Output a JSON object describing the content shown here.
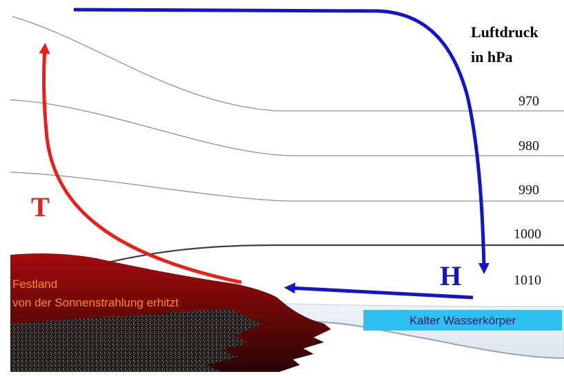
{
  "legend": {
    "title_line1": "Luftdruck",
    "title_line2": "in hPa"
  },
  "pressure_levels": [
    "970",
    "980",
    "990",
    "1000",
    "1010"
  ],
  "labels": {
    "low_pressure": "T",
    "high_pressure": "H",
    "land_line1": "Festland",
    "land_line2": "von der Sonnenstrahlung erhitzt",
    "water": "Kalter Wasserkörper"
  },
  "colors": {
    "warm_arrow": "#e8201a",
    "cold_arrow": "#1414c8",
    "land_text": "#ff8a1c",
    "water_box": "#2ec0f0",
    "land_dark": "#3a0505",
    "land_red": "#a50c0c"
  }
}
